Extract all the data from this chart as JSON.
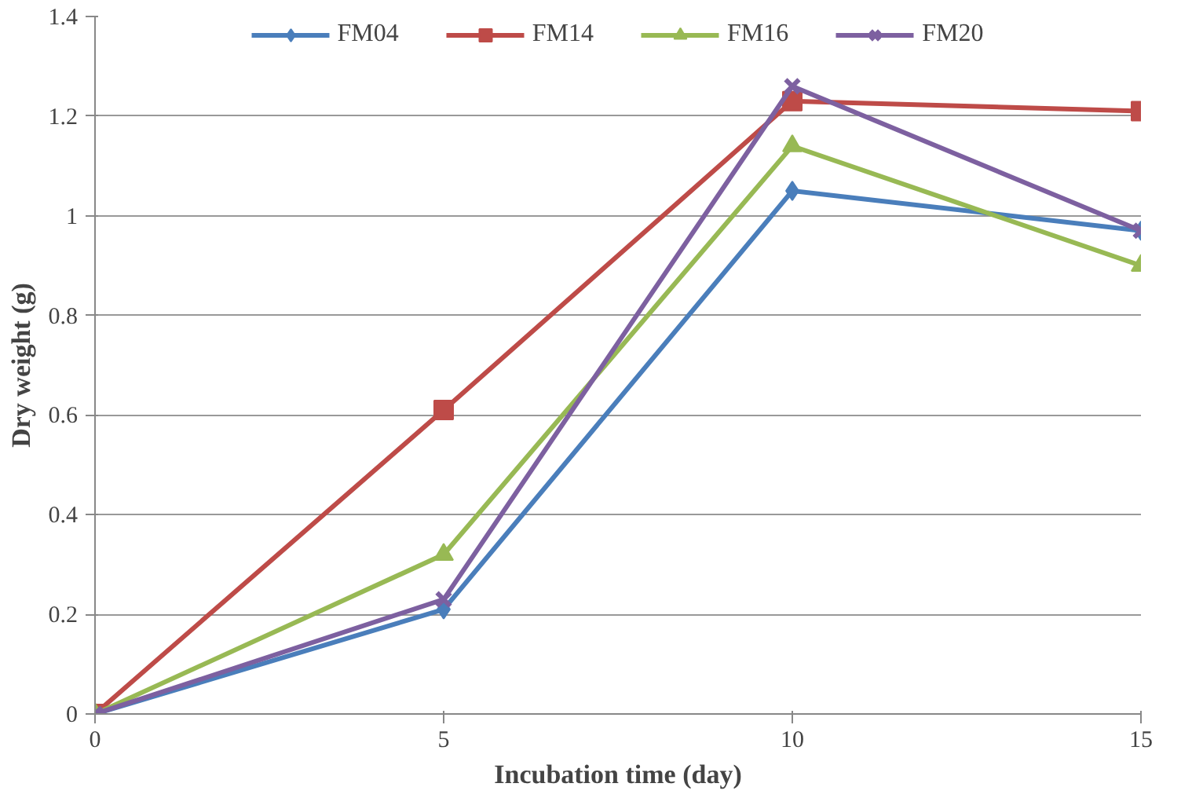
{
  "chart_data": {
    "type": "line",
    "xlabel": "Incubation time (day)",
    "ylabel": "Dry weight (g)",
    "x": [
      0,
      5,
      10,
      15
    ],
    "xlim": [
      0,
      15
    ],
    "xticks": [
      0,
      5,
      10,
      15
    ],
    "ylim": [
      0,
      1.4
    ],
    "yticks": [
      0,
      0.2,
      0.4,
      0.6,
      0.8,
      1,
      1.2,
      1.4
    ],
    "grid": "y",
    "legend": "top",
    "line_style": "solid",
    "series": [
      {
        "name": "FM04",
        "color": "#4a7ebb",
        "marker": "diamond",
        "values": [
          0,
          0.21,
          1.05,
          0.97
        ]
      },
      {
        "name": "FM14",
        "color": "#be4b48",
        "marker": "square",
        "values": [
          0,
          0.61,
          1.23,
          1.21
        ]
      },
      {
        "name": "FM16",
        "color": "#98b954",
        "marker": "triangle",
        "values": [
          0,
          0.32,
          1.14,
          0.9
        ]
      },
      {
        "name": "FM20",
        "color": "#7d60a0",
        "marker": "x",
        "values": [
          0,
          0.23,
          1.26,
          0.97
        ]
      }
    ]
  }
}
